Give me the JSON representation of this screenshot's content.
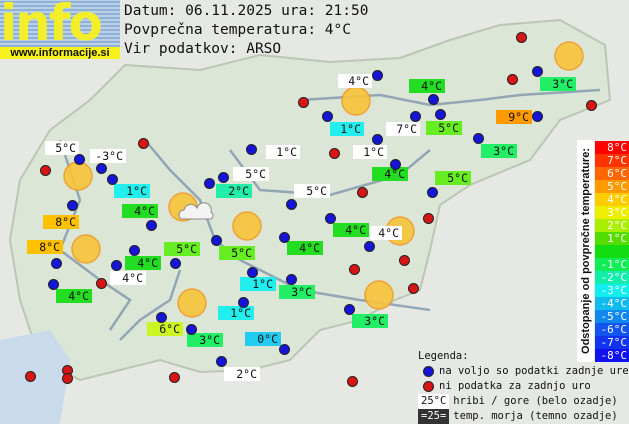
{
  "logo": {
    "text": "info",
    "url": "www.informacije.si"
  },
  "header": {
    "date_line": "Datum: 06.11.2025 ura: 21:50",
    "avg_line": "Povprečna temperatura: 4°C",
    "source_line": "Vir podatkov: ARSO"
  },
  "colors": {
    "blue_dot": "#1515d8",
    "red_dot": "#d81515",
    "sun": "#f7c43a",
    "sun_border": "#f09a2a"
  },
  "stations": [
    {
      "temp": "4°C",
      "bg": "#ffffff"
    },
    {
      "temp": "4°C",
      "bg": "#22dd22"
    },
    {
      "temp": "3°C",
      "bg": "#22ee66"
    },
    {
      "temp": "9°C",
      "bg": "#ff9900"
    },
    {
      "temp": "1°C",
      "bg": "#22eeee"
    },
    {
      "temp": "7°C",
      "bg": "#ffffff"
    },
    {
      "temp": "5°C",
      "bg": "#66ee22"
    },
    {
      "temp": "3°C",
      "bg": "#22ee66"
    },
    {
      "temp": "5°C",
      "bg": "#ffffff"
    },
    {
      "temp": "-3°C",
      "bg": "#ffffff"
    },
    {
      "temp": "1°C",
      "bg": "#ffffff"
    },
    {
      "temp": "1°C",
      "bg": "#ffffff"
    },
    {
      "temp": "4°C",
      "bg": "#22dd22"
    },
    {
      "temp": "5°C",
      "bg": "#ffffff"
    },
    {
      "temp": "5°C",
      "bg": "#66ee22"
    },
    {
      "temp": "1°C",
      "bg": "#22eeee"
    },
    {
      "temp": "2°C",
      "bg": "#22eeaa"
    },
    {
      "temp": "5°C",
      "bg": "#ffffff"
    },
    {
      "temp": "4°C",
      "bg": "#22dd22"
    },
    {
      "temp": "8°C",
      "bg": "#ffc000"
    },
    {
      "temp": "4°C",
      "bg": "#22dd22"
    },
    {
      "temp": "4°C",
      "bg": "#ffffff"
    },
    {
      "temp": "8°C",
      "bg": "#ffc000"
    },
    {
      "temp": "5°C",
      "bg": "#66ee22"
    },
    {
      "temp": "5°C",
      "bg": "#66ee22"
    },
    {
      "temp": "4°C",
      "bg": "#22dd22"
    },
    {
      "temp": "4°C",
      "bg": "#22dd22"
    },
    {
      "temp": "4°C",
      "bg": "#ffffff"
    },
    {
      "temp": "1°C",
      "bg": "#22eeee"
    },
    {
      "temp": "3°C",
      "bg": "#22ee66"
    },
    {
      "temp": "4°C",
      "bg": "#22dd22"
    },
    {
      "temp": "1°C",
      "bg": "#22eeee"
    },
    {
      "temp": "3°C",
      "bg": "#22ee66"
    },
    {
      "temp": "6°C",
      "bg": "#ccf522"
    },
    {
      "temp": "3°C",
      "bg": "#22ee66"
    },
    {
      "temp": "0°C",
      "bg": "#22ccf0"
    },
    {
      "temp": "2°C",
      "bg": "#ffffff"
    }
  ],
  "scale": {
    "title": "Odstopanje od povprečne temperature:",
    "steps": [
      {
        "label": "8°C",
        "color": "#ff0000"
      },
      {
        "label": "7°C",
        "color": "#ff3300"
      },
      {
        "label": "6°C",
        "color": "#ff6600"
      },
      {
        "label": "5°C",
        "color": "#ff9900"
      },
      {
        "label": "4°C",
        "color": "#ffcc00"
      },
      {
        "label": "3°C",
        "color": "#eeee00"
      },
      {
        "label": "2°C",
        "color": "#aaee00"
      },
      {
        "label": "1°C",
        "color": "#55dd00"
      },
      {
        "label": "",
        "color": "#11dd11"
      },
      {
        "label": "-1°C",
        "color": "#11ee55"
      },
      {
        "label": "-2°C",
        "color": "#11eeaa"
      },
      {
        "label": "-3°C",
        "color": "#11eeee"
      },
      {
        "label": "-4°C",
        "color": "#11bbee"
      },
      {
        "label": "-5°C",
        "color": "#1188ee"
      },
      {
        "label": "-6°C",
        "color": "#1155ee"
      },
      {
        "label": "-7°C",
        "color": "#1133ee"
      },
      {
        "label": "-8°C",
        "color": "#1111ee"
      }
    ]
  },
  "legend": {
    "title": "Legenda:",
    "blue": "na voljo so podatki zadnje ure",
    "red": "ni podatka za zadnjo uro",
    "hills_sample": "25°C",
    "hills": "hribi / gore (belo ozadje)",
    "sea_sample": "=25=",
    "sea": "temp. morja (temno ozadje)"
  }
}
